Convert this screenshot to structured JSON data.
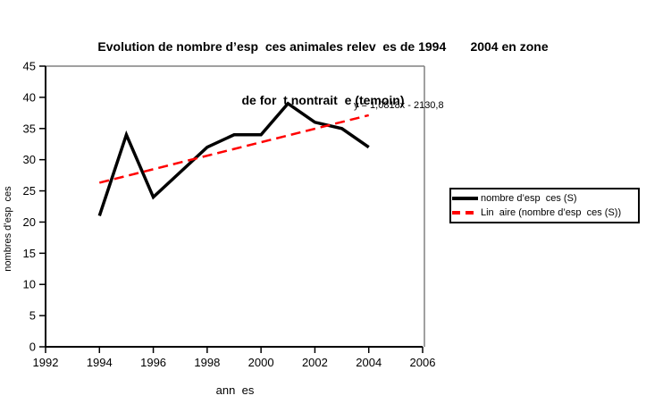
{
  "title": {
    "line1": "Evolution de nombre d’esp  ces animales relev  es de 1994       2004 en zone",
    "line2": "de for  t nontrait  e (temoin)"
  },
  "equation": "y = 1,0818x - 2130,8",
  "legend": {
    "position": "right",
    "items": [
      {
        "label": "nombre d’esp  ces (S)",
        "color": "#000000",
        "style": "solid"
      },
      {
        "label": "Lin  aire (nombre d’esp  ces (S))",
        "color": "#FF0000",
        "style": "dashed"
      }
    ]
  },
  "colors": {
    "series": "#000000",
    "trendline": "#FF0000",
    "plot_border": "#808080",
    "axis": "#000000",
    "background": "#FFFFFF"
  },
  "chart_data": {
    "type": "line",
    "title": "Evolution de nombre d'esp ces animales relev es de 1994  2004 en zone de for t nontrait e (temoin)",
    "x": [
      1994,
      1995,
      1996,
      1997,
      1998,
      1999,
      2000,
      2001,
      2002,
      2003,
      2004
    ],
    "series": [
      {
        "name": "nombre d'esp ces (S)",
        "values": [
          21,
          34,
          24,
          28,
          32,
          34,
          34,
          39,
          36,
          35,
          32
        ],
        "color": "#000000",
        "line_style": "solid"
      },
      {
        "name": "Lin aire (nombre d'esp ces (S))",
        "trendline": true,
        "slope": 1.0818,
        "intercept": -2130.8,
        "x_range": [
          1994,
          2004
        ],
        "equation_label": "y = 1,0818x - 2130,8",
        "color": "#FF0000",
        "line_style": "dashed"
      }
    ],
    "xlabel": "ann  es",
    "ylabel": "nombres d’esp  ces",
    "xlim": [
      1992,
      2006
    ],
    "ylim": [
      0,
      45
    ],
    "x_ticks": [
      1992,
      1994,
      1996,
      1998,
      2000,
      2002,
      2004,
      2006
    ],
    "y_ticks": [
      0,
      5,
      10,
      15,
      20,
      25,
      30,
      35,
      40,
      45
    ],
    "grid": false,
    "legend_position": "right"
  }
}
